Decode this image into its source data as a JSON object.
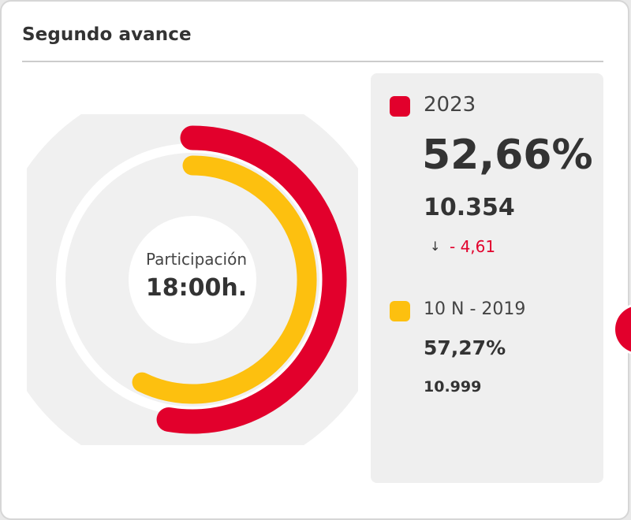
{
  "title": "Segundo avance",
  "center": {
    "label": "Participación",
    "time": "18:00h."
  },
  "current": {
    "year": "2023",
    "percent": "52,66%",
    "percent_value": 52.66,
    "votes": "10.354",
    "diff": "- 4,61",
    "color": "#e2002c"
  },
  "previous": {
    "label": "10 N - 2019",
    "percent": "57,27%",
    "percent_value": 57.27,
    "votes": "10.999",
    "color": "#fdc00f"
  },
  "icons": {
    "diff_arrow": "arrow-down-icon",
    "next": "next-arrow-icon"
  }
}
